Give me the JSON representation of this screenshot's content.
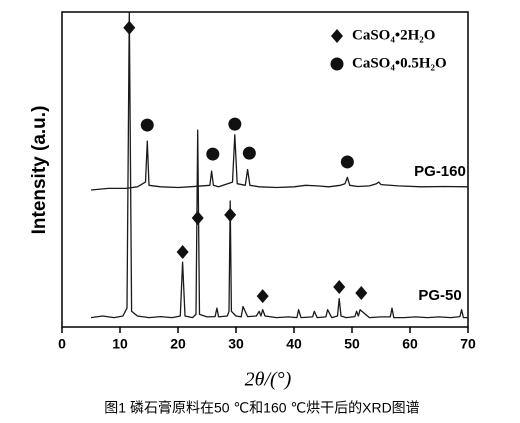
{
  "chart_data": {
    "type": "line",
    "xlabel": "2θ/(°)",
    "ylabel": "Intensity (a.u.)",
    "caption": "图1  磷石膏原料在50 ℃和160 ℃烘干后的XRD图谱",
    "xlim": [
      0,
      70
    ],
    "xticks": [
      0,
      10,
      20,
      30,
      40,
      50,
      60,
      70
    ],
    "ylim": [
      0,
      100
    ],
    "series": [
      {
        "name": "PG-160",
        "color": "#1a1a1a",
        "x": [
          5,
          8,
          11,
          13,
          14.4,
          14.7,
          15,
          17,
          20,
          22,
          25.5,
          25.8,
          26.1,
          27,
          29.4,
          29.8,
          30.2,
          31.6,
          32,
          32.4,
          34,
          37,
          40,
          42,
          44,
          46,
          48,
          48.8,
          49.2,
          49.6,
          51,
          53,
          54.2,
          54.6,
          55,
          58,
          62,
          66,
          70
        ],
        "values": [
          43.5,
          44,
          44,
          44.5,
          46,
          59,
          45,
          44.5,
          44.3,
          44.5,
          45,
          49.5,
          45,
          44.5,
          46,
          61,
          45.5,
          45,
          50,
          45,
          44.5,
          44.3,
          44.5,
          45,
          44.8,
          44.5,
          45,
          45.5,
          47.5,
          45,
          44.6,
          44.8,
          45.5,
          46,
          45.2,
          44.8,
          44.5,
          44.6,
          44.5
        ]
      },
      {
        "name": "PG-50",
        "color": "#1a1a1a",
        "x": [
          5,
          7,
          9,
          10.5,
          11.2,
          11.6,
          12,
          13,
          15,
          17,
          19,
          20.4,
          20.8,
          21.2,
          22.5,
          23.1,
          23.4,
          23.7,
          25,
          26.4,
          26.7,
          27,
          28.5,
          28.8,
          29,
          29.2,
          30,
          30.9,
          31.2,
          32,
          33.5,
          34,
          34.3,
          34.6,
          35,
          35.8,
          37,
          39,
          40.5,
          40.8,
          41.2,
          43.2,
          43.5,
          44,
          45.5,
          45.8,
          46.5,
          47.5,
          47.8,
          48.1,
          49,
          50.5,
          50.8,
          51.1,
          51.4,
          53,
          55,
          56.6,
          56.9,
          57.2,
          59,
          61,
          63,
          65,
          67,
          68.6,
          68.9,
          69.2,
          70
        ],
        "values": [
          3,
          3.5,
          3,
          3.5,
          6,
          100,
          5,
          3.5,
          3,
          3.3,
          3,
          3.5,
          20.6,
          3.5,
          3,
          4,
          62.5,
          4,
          3.2,
          3.3,
          6,
          3.2,
          3.5,
          5,
          40,
          5,
          3.5,
          3.2,
          6.5,
          3.3,
          3.5,
          5,
          3.5,
          5.5,
          3.5,
          3.3,
          3,
          3.2,
          3,
          5.5,
          3,
          3.2,
          5,
          3,
          3.2,
          5.5,
          3,
          3.5,
          9,
          3.5,
          3,
          3.3,
          5,
          3.5,
          5.5,
          3,
          3.2,
          3.2,
          6,
          3,
          3,
          3.2,
          3,
          3.2,
          3,
          3.3,
          5.5,
          3,
          3
        ]
      }
    ],
    "phases": [
      {
        "name": "CaSO₄•2H₂O",
        "marker": "diamond",
        "x": [
          11.6,
          20.8,
          23.4,
          29.0,
          34.6,
          47.8,
          51.6
        ],
        "y": [
          95,
          23.8,
          34.6,
          35.6,
          9.8,
          12.7,
          10.8
        ]
      },
      {
        "name": "CaSO₄•0.5H₂O",
        "marker": "circle",
        "x": [
          14.7,
          26.0,
          29.8,
          32.3,
          49.2
        ],
        "y": [
          64.1,
          54.9,
          64.4,
          55.2,
          52.4
        ]
      }
    ]
  }
}
